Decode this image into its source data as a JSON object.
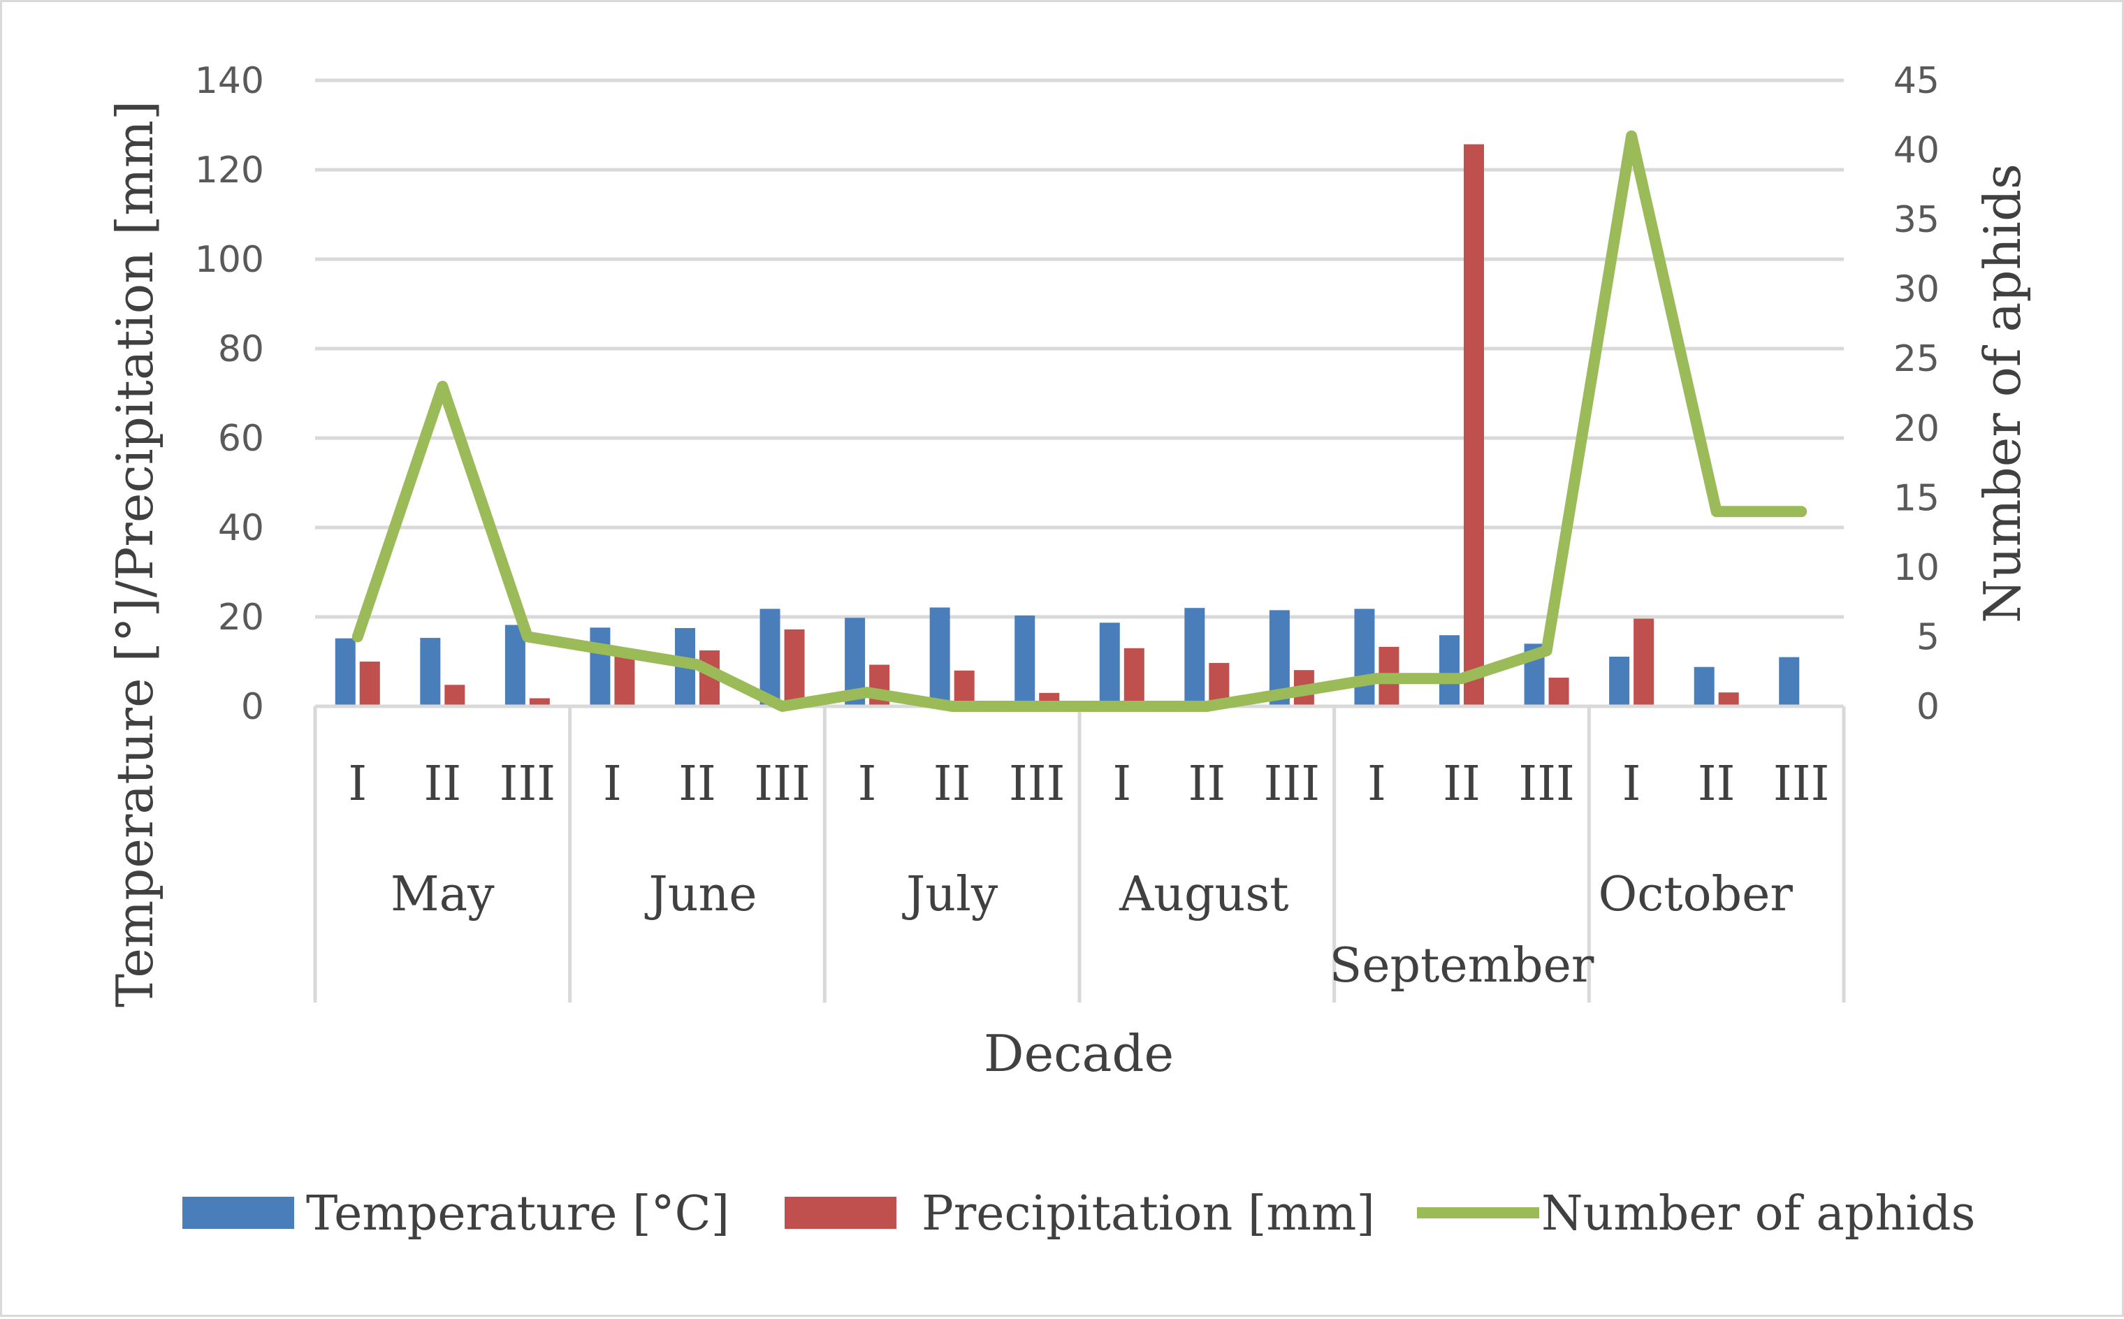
{
  "chart_data": {
    "type": "bar+line (dual axis)",
    "months": [
      "May",
      "June",
      "July",
      "August",
      "September",
      "October"
    ],
    "decades": [
      "I",
      "II",
      "III",
      "I",
      "II",
      "III",
      "I",
      "II",
      "III",
      "I",
      "II",
      "III",
      "I",
      "II",
      "III",
      "I",
      "II",
      "III"
    ],
    "xlabel": "Decade",
    "ylabel_left": "Temperature [°]/Precipitation [mm]",
    "ylabel_right": "Number of aphids",
    "y_left": {
      "min": 0,
      "max": 140,
      "ticks": [
        0,
        20,
        40,
        60,
        80,
        100,
        120,
        140
      ]
    },
    "y_right": {
      "min": 0,
      "max": 45,
      "ticks": [
        0,
        5,
        10,
        15,
        20,
        25,
        30,
        35,
        40,
        45
      ]
    },
    "grid": true,
    "legend_position": "bottom",
    "series": [
      {
        "name": "Temperature [°C]",
        "kind": "bar",
        "axis": "left",
        "color": "#4a7ebb",
        "values": [
          15.2,
          15.3,
          18.2,
          17.6,
          17.5,
          21.8,
          19.8,
          22.1,
          20.3,
          18.7,
          22.0,
          21.5,
          21.8,
          15.9,
          14.0,
          11.1,
          8.8,
          11.0
        ]
      },
      {
        "name": "Precipitation [mm]",
        "kind": "bar",
        "axis": "left",
        "color": "#c0504d",
        "values": [
          10.0,
          4.8,
          1.8,
          12.8,
          12.5,
          17.2,
          9.3,
          8.0,
          3.0,
          13.0,
          9.7,
          8.1,
          13.3,
          125.7,
          6.4,
          19.6,
          3.1,
          0
        ]
      },
      {
        "name": "Number of aphids",
        "kind": "line",
        "axis": "right",
        "color": "#9bbb59",
        "values": [
          5,
          23,
          5,
          4,
          3,
          0,
          1,
          0,
          0,
          0,
          0,
          1,
          2,
          2,
          4,
          41,
          14,
          14
        ]
      }
    ]
  }
}
